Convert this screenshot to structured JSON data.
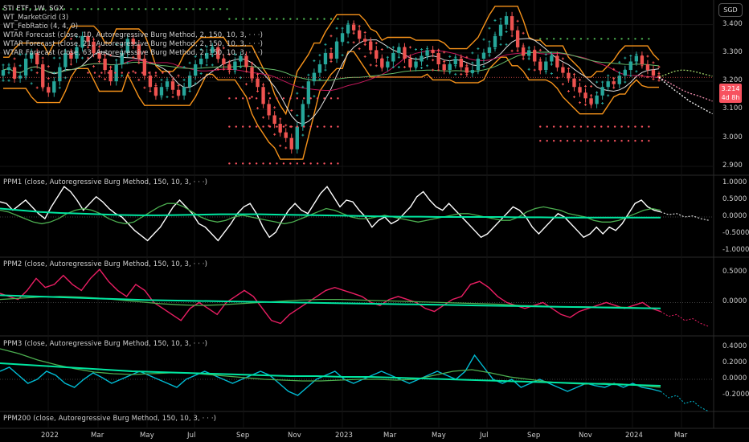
{
  "symbol": {
    "line": "STI ETF, 1W, SGX",
    "currency": "SGD",
    "last_price": "3.214",
    "countdown": "4d 8h"
  },
  "legend": [
    "WT_MarketGrid (3)",
    "WT_FebRatio (4, 4, 0)",
    "WTAR Forecast (close, 10, Autoregressive Burg Method, 2, 150, 10, 3, · · ·)",
    "WTAR Forecast (close, 21, Autoregressive Burg Method, 2, 150, 10, 3, · · ·)",
    "WTAR Forecast (close, 63, Autoregressive Burg Method, 2, 150, 10, 3, · · ·)"
  ],
  "pane_titles": [
    "PPM1 (close, Autoregressive Burg Method, 150, 10, 3, · · ·)",
    "PPM2 (close, Autoregressive Burg Method, 150, 10, 3, · · ·)",
    "PPM3 (close, Autoregressive Burg Method, 150, 10, 3, · · ·)",
    "PPM200 (close, Autoregressive Burg Method, 150, 10, 3, · · ·)"
  ],
  "colors": {
    "up": "#26a69a",
    "down": "#ef5350",
    "envelope": "#f7931a",
    "grid_red": "#f7525f",
    "grid_green": "#4caf50",
    "ppm1": "#ffffff",
    "ppm2": "#e91e63",
    "ppm3": "#00bcd4",
    "signal_green": "#4caf50",
    "signal_teal": "#00e5a0"
  },
  "chart_data": [
    {
      "type": "candlestick",
      "title": "STI ETF, 1W, SGX",
      "x_ticks": [
        "2022",
        "Mar",
        "May",
        "Jul",
        "Sep",
        "Nov",
        "2023",
        "Mar",
        "May",
        "Jul",
        "Sep",
        "Nov",
        "2024",
        "Mar"
      ],
      "y_ticks": [
        "3.400",
        "3.300",
        "3.200",
        "3.100",
        "3.000",
        "2.900"
      ],
      "ylim": [
        2.88,
        3.47
      ],
      "close": [
        3.24,
        3.25,
        3.21,
        3.22,
        3.28,
        3.3,
        3.26,
        3.18,
        3.16,
        3.2,
        3.25,
        3.3,
        3.28,
        3.32,
        3.36,
        3.34,
        3.3,
        3.28,
        3.24,
        3.2,
        3.26,
        3.3,
        3.35,
        3.33,
        3.28,
        3.22,
        3.18,
        3.15,
        3.18,
        3.2,
        3.17,
        3.15,
        3.18,
        3.22,
        3.26,
        3.28,
        3.3,
        3.32,
        3.28,
        3.26,
        3.24,
        3.27,
        3.29,
        3.25,
        3.21,
        3.18,
        3.12,
        3.08,
        3.05,
        3.02,
        3.0,
        2.96,
        3.04,
        3.12,
        3.2,
        3.23,
        3.26,
        3.3,
        3.28,
        3.34,
        3.37,
        3.4,
        3.38,
        3.35,
        3.34,
        3.31,
        3.28,
        3.25,
        3.27,
        3.3,
        3.32,
        3.28,
        3.25,
        3.27,
        3.29,
        3.31,
        3.3,
        3.26,
        3.24,
        3.26,
        3.28,
        3.25,
        3.23,
        3.24,
        3.28,
        3.3,
        3.32,
        3.36,
        3.4,
        3.43,
        3.38,
        3.32,
        3.29,
        3.31,
        3.27,
        3.24,
        3.27,
        3.29,
        3.25,
        3.23,
        3.21,
        3.18,
        3.16,
        3.14,
        3.12,
        3.15,
        3.18,
        3.2,
        3.19,
        3.22,
        3.24,
        3.27,
        3.29,
        3.26,
        3.24,
        3.22,
        3.214
      ],
      "forecast": [
        {
          "name": "WTAR Forecast (close, 10, Autoregressive Burg Method, 2, 150, 10, 3, · · ·)",
          "values": [
            3.214,
            3.225,
            3.235,
            3.24,
            3.238,
            3.232,
            3.225,
            3.218
          ]
        },
        {
          "name": "WTAR Forecast (close, 21, Autoregressive Burg Method, 2, 150, 10, 3, · · ·)",
          "values": [
            3.214,
            3.2,
            3.185,
            3.17,
            3.158,
            3.15,
            3.14,
            3.13
          ]
        },
        {
          "name": "WTAR Forecast (close, 63, Autoregressive Burg Method, 2, 150, 10, 3, · · ·)",
          "values": [
            3.214,
            3.19,
            3.17,
            3.15,
            3.13,
            3.115,
            3.1,
            3.085
          ]
        }
      ]
    },
    {
      "type": "line",
      "title": "PPM1 (close, Autoregressive Burg Method, 150, 10, 3, · · ·)",
      "y_ticks": [
        "1.0000",
        "0.5000",
        "0.0000",
        "-0.5000",
        "-1.0000"
      ],
      "ylim": [
        -1.0,
        1.0
      ],
      "series": [
        {
          "values": [
            0.45,
            0.4,
            0.2,
            0.35,
            0.5,
            0.3,
            0.1,
            -0.05,
            0.3,
            0.6,
            0.9,
            0.75,
            0.5,
            0.2,
            0.4,
            0.6,
            0.45,
            0.25,
            0.1,
            0.0,
            -0.2,
            -0.4,
            -0.55,
            -0.7,
            -0.5,
            -0.3,
            0.0,
            0.3,
            0.5,
            0.3,
            0.1,
            -0.2,
            -0.3,
            -0.5,
            -0.7,
            -0.45,
            -0.2,
            0.1,
            0.3,
            0.4,
            0.1,
            -0.3,
            -0.6,
            -0.45,
            -0.1,
            0.2,
            0.4,
            0.2,
            0.1,
            0.4,
            0.7,
            0.9,
            0.6,
            0.3,
            0.5,
            0.45,
            0.2,
            0.0,
            -0.3,
            -0.1,
            0.0,
            -0.2,
            -0.1,
            0.1,
            0.3,
            0.6,
            0.75,
            0.5,
            0.3,
            0.2,
            0.4,
            0.2,
            0.0,
            -0.2,
            -0.4,
            -0.6,
            -0.5,
            -0.3,
            -0.1,
            0.1,
            0.3,
            0.2,
            0.0,
            -0.3,
            -0.5,
            -0.3,
            -0.1,
            0.1,
            0.0,
            -0.2,
            -0.4,
            -0.6,
            -0.5,
            -0.3,
            -0.5,
            -0.3,
            -0.4,
            -0.2,
            0.1,
            0.4,
            0.5,
            0.3,
            0.2,
            0.15
          ]
        },
        {
          "values": [
            0.2,
            0.15,
            0.05,
            -0.05,
            -0.15,
            -0.2,
            -0.15,
            -0.05,
            0.1,
            0.2,
            0.25,
            0.2,
            0.1,
            -0.05,
            -0.15,
            -0.2,
            -0.15,
            0.0,
            0.15,
            0.3,
            0.4,
            0.4,
            0.3,
            0.15,
            0.0,
            -0.1,
            -0.15,
            -0.1,
            0.0,
            0.05,
            0.0,
            -0.05,
            -0.1,
            -0.15,
            -0.2,
            -0.15,
            -0.05,
            0.05,
            0.15,
            0.25,
            0.2,
            0.1,
            0.0,
            -0.05,
            -0.05,
            0.0,
            0.05,
            0.0,
            -0.05,
            -0.1,
            -0.15,
            -0.1,
            -0.05,
            0.0,
            0.05,
            0.1,
            0.1,
            0.05,
            0.0,
            -0.05,
            -0.1,
            -0.1,
            0.0,
            0.15,
            0.25,
            0.3,
            0.25,
            0.2,
            0.1,
            0.05,
            0.0,
            -0.1,
            -0.15,
            -0.15,
            -0.1,
            0.0,
            0.1,
            0.2,
            0.25,
            0.2
          ]
        },
        {
          "values": [
            0.25,
            0.2,
            0.15,
            0.12,
            0.1,
            0.08,
            0.06,
            0.05,
            0.05,
            0.06,
            0.07,
            0.08,
            0.08,
            0.08,
            0.07,
            0.06,
            0.05,
            0.04,
            0.03,
            0.02,
            0.01,
            0.01,
            0.0,
            0.0,
            0.0,
            0.0,
            -0.01,
            -0.01,
            -0.02,
            -0.02,
            -0.02,
            -0.02,
            -0.02,
            -0.02
          ]
        }
      ]
    },
    {
      "type": "line",
      "title": "PPM2 (close, Autoregressive Burg Method, 150, 10, 3, · · ·)",
      "y_ticks": [
        "0.5000",
        "0.0000"
      ],
      "ylim": [
        -0.45,
        0.62
      ],
      "series": [
        {
          "values": [
            0.15,
            0.1,
            0.05,
            0.2,
            0.4,
            0.25,
            0.3,
            0.45,
            0.3,
            0.2,
            0.4,
            0.55,
            0.35,
            0.2,
            0.1,
            0.3,
            0.2,
            0.0,
            -0.1,
            -0.2,
            -0.3,
            -0.1,
            0.0,
            -0.1,
            -0.2,
            0.0,
            0.1,
            0.2,
            0.1,
            -0.1,
            -0.3,
            -0.35,
            -0.2,
            -0.1,
            0.0,
            0.1,
            0.2,
            0.25,
            0.2,
            0.15,
            0.1,
            0.0,
            -0.05,
            0.05,
            0.1,
            0.05,
            0.0,
            -0.1,
            -0.15,
            -0.05,
            0.05,
            0.1,
            0.3,
            0.35,
            0.25,
            0.1,
            0.0,
            -0.05,
            -0.1,
            -0.05,
            0.0,
            -0.1,
            -0.2,
            -0.25,
            -0.15,
            -0.1,
            -0.05,
            0.0,
            -0.05,
            -0.1,
            -0.05,
            0.0,
            -0.1,
            -0.15
          ]
        },
        {
          "values": [
            0.05,
            0.07,
            0.09,
            0.1,
            0.09,
            0.07,
            0.04,
            0.01,
            -0.02,
            -0.04,
            -0.05,
            -0.04,
            -0.02,
            0.0,
            0.02,
            0.04,
            0.05,
            0.05,
            0.04,
            0.03,
            0.02,
            0.01,
            0.0,
            -0.01,
            -0.02,
            -0.03,
            -0.05,
            -0.06,
            -0.07,
            -0.07,
            -0.08,
            -0.08,
            -0.09,
            -0.1
          ]
        },
        {
          "values": [
            0.12,
            0.1,
            0.08,
            0.06,
            0.04,
            0.03,
            0.02,
            0.01,
            0.0,
            -0.01,
            -0.02,
            -0.03,
            -0.04,
            -0.05,
            -0.06,
            -0.07,
            -0.08,
            -0.09,
            -0.1
          ]
        }
      ]
    },
    {
      "type": "line",
      "title": "PPM3 (close, Autoregressive Burg Method, 150, 10, 3, · · ·)",
      "y_ticks": [
        "0.4000",
        "0.2000",
        "0.0000",
        "-0.2000"
      ],
      "ylim": [
        -0.32,
        0.44
      ],
      "series": [
        {
          "values": [
            0.1,
            0.15,
            0.05,
            -0.05,
            0.0,
            0.1,
            0.05,
            -0.05,
            -0.1,
            0.0,
            0.08,
            0.02,
            -0.05,
            0.0,
            0.05,
            0.1,
            0.05,
            0.0,
            -0.05,
            -0.1,
            0.0,
            0.05,
            0.1,
            0.05,
            0.0,
            -0.05,
            0.0,
            0.05,
            0.1,
            0.05,
            -0.05,
            -0.15,
            -0.2,
            -0.1,
            0.0,
            0.05,
            0.1,
            0.0,
            -0.05,
            0.0,
            0.05,
            0.1,
            0.05,
            0.0,
            -0.05,
            0.0,
            0.05,
            0.1,
            0.05,
            0.0,
            0.1,
            0.3,
            0.15,
            0.0,
            -0.05,
            0.0,
            -0.1,
            -0.05,
            0.0,
            -0.05,
            -0.1,
            -0.15,
            -0.1,
            -0.05,
            -0.08,
            -0.1,
            -0.05,
            -0.1,
            -0.05,
            -0.1,
            -0.12,
            -0.15
          ]
        },
        {
          "values": [
            0.38,
            0.32,
            0.24,
            0.18,
            0.13,
            0.09,
            0.07,
            0.06,
            0.07,
            0.08,
            0.08,
            0.06,
            0.04,
            0.02,
            0.0,
            -0.01,
            -0.02,
            -0.02,
            -0.01,
            0.0,
            0.0,
            -0.01,
            0.0,
            0.05,
            0.1,
            0.12,
            0.08,
            0.03,
            0.0,
            -0.03,
            -0.05,
            -0.06,
            -0.05,
            -0.06,
            -0.08,
            -0.1
          ]
        },
        {
          "values": [
            0.2,
            0.18,
            0.16,
            0.14,
            0.12,
            0.1,
            0.09,
            0.08,
            0.07,
            0.06,
            0.05,
            0.04,
            0.04,
            0.03,
            0.03,
            0.02,
            0.01,
            0.0,
            -0.01,
            -0.02,
            -0.03,
            -0.04,
            -0.05,
            -0.06,
            -0.07,
            -0.08
          ]
        }
      ]
    }
  ]
}
